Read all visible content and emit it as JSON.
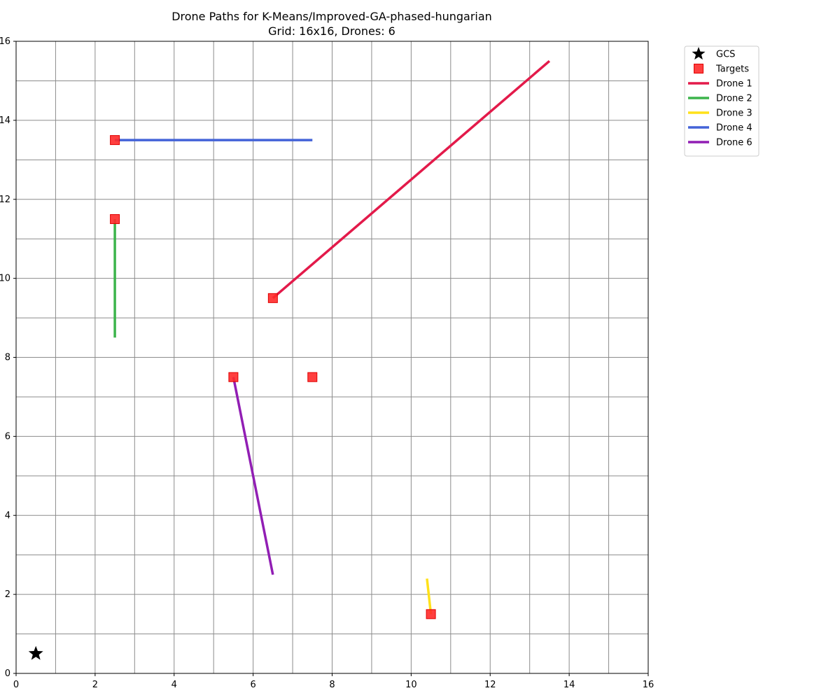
{
  "chart_data": {
    "type": "line",
    "title": "Drone Paths for K-Means/Improved-GA-phased-hungarian",
    "subtitle": "Grid: 16x16, Drones: 6",
    "xlabel": "",
    "ylabel": "",
    "xlim": [
      0,
      16
    ],
    "ylim": [
      0,
      16
    ],
    "x_ticks": [
      0,
      2,
      4,
      6,
      8,
      10,
      12,
      14,
      16
    ],
    "y_ticks": [
      0,
      2,
      4,
      6,
      8,
      10,
      12,
      14,
      16
    ],
    "grid": true,
    "grid_step": 1,
    "legend_position": "outside-top-right",
    "gcs": {
      "name": "GCS",
      "point": [
        0.5,
        0.5
      ],
      "color": "#000000",
      "marker": "star"
    },
    "targets": {
      "name": "Targets",
      "color": "#ff2a2a",
      "marker": "square",
      "points": [
        [
          2.5,
          13.5
        ],
        [
          2.5,
          11.5
        ],
        [
          6.5,
          9.5
        ],
        [
          5.5,
          7.5
        ],
        [
          7.5,
          7.5
        ],
        [
          10.5,
          1.5
        ]
      ]
    },
    "series": [
      {
        "name": "Drone 1",
        "color": "#e31a4a",
        "points": [
          [
            6.5,
            9.5
          ],
          [
            13.5,
            15.5
          ]
        ]
      },
      {
        "name": "Drone 2",
        "color": "#3cb44b",
        "points": [
          [
            2.5,
            11.5
          ],
          [
            2.5,
            8.5
          ]
        ]
      },
      {
        "name": "Drone 3",
        "color": "#ffe119",
        "points": [
          [
            10.5,
            1.5
          ],
          [
            10.4,
            2.4
          ]
        ]
      },
      {
        "name": "Drone 4",
        "color": "#4363d8",
        "points": [
          [
            2.5,
            13.5
          ],
          [
            7.5,
            13.5
          ]
        ]
      },
      {
        "name": "Drone 6",
        "color": "#911eb4",
        "points": [
          [
            5.5,
            7.5
          ],
          [
            6.5,
            2.5
          ]
        ]
      }
    ]
  }
}
